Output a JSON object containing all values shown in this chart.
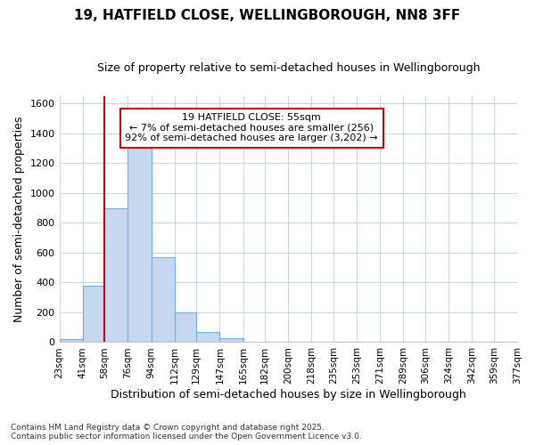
{
  "title": "19, HATFIELD CLOSE, WELLINGBOROUGH, NN8 3FF",
  "subtitle": "Size of property relative to semi-detached houses in Wellingborough",
  "xlabel": "Distribution of semi-detached houses by size in Wellingborough",
  "ylabel": "Number of semi-detached properties",
  "footnote": "Contains HM Land Registry data © Crown copyright and database right 2025.\nContains public sector information licensed under the Open Government Licence v3.0.",
  "bin_labels": [
    "23sqm",
    "41sqm",
    "58sqm",
    "76sqm",
    "94sqm",
    "112sqm",
    "129sqm",
    "147sqm",
    "165sqm",
    "182sqm",
    "200sqm",
    "218sqm",
    "235sqm",
    "253sqm",
    "271sqm",
    "289sqm",
    "306sqm",
    "324sqm",
    "342sqm",
    "359sqm",
    "377sqm"
  ],
  "bin_edges": [
    23,
    41,
    58,
    76,
    94,
    112,
    129,
    147,
    165,
    182,
    200,
    218,
    235,
    253,
    271,
    289,
    306,
    324,
    342,
    359,
    377
  ],
  "bar_heights": [
    20,
    380,
    900,
    1300,
    570,
    200,
    70,
    25,
    5,
    0,
    0,
    0,
    0,
    0,
    0,
    0,
    0,
    0,
    0,
    0
  ],
  "bar_color": "#c5d8f0",
  "bar_edge_color": "#7aadd4",
  "vline_color": "#cc0000",
  "vline_x": 58,
  "annotation_title": "19 HATFIELD CLOSE: 55sqm",
  "annotation_line2": "← 7% of semi-detached houses are smaller (256)",
  "annotation_line3": "92% of semi-detached houses are larger (3,202) →",
  "annotation_box_color": "#cc0000",
  "annotation_bg": "#ffffff",
  "ylim": [
    0,
    1650
  ],
  "background_color": "#ffffff",
  "grid_color": "#c8d8e8",
  "yticks": [
    0,
    200,
    400,
    600,
    800,
    1000,
    1200,
    1400,
    1600
  ],
  "title_fontsize": 11,
  "subtitle_fontsize": 9,
  "tick_label_fontsize": 7.5,
  "axis_label_fontsize": 9,
  "annotation_fontsize": 8
}
